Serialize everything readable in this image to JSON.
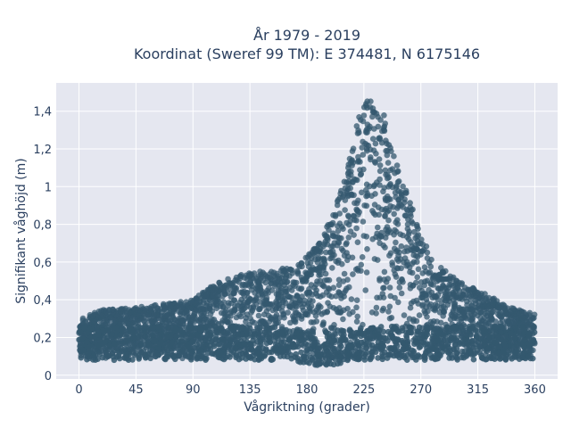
{
  "chart_data": {
    "type": "scatter",
    "title_lines": [
      "År 1979 - 2019",
      "Koordinat (Sweref 99 TM): E 374481, N 6175146"
    ],
    "xlabel": "Vågriktning (grader)",
    "ylabel": "Signifikant våghöjd (m)",
    "xlim": [
      -18,
      378
    ],
    "ylim": [
      -0.02,
      1.55
    ],
    "x_ticks": [
      0,
      45,
      90,
      135,
      180,
      225,
      270,
      315,
      360
    ],
    "x_tick_labels": [
      "0",
      "45",
      "90",
      "135",
      "180",
      "225",
      "270",
      "315",
      "360"
    ],
    "y_ticks": [
      0,
      0.2,
      0.4,
      0.6,
      0.8,
      1.0,
      1.2,
      1.4
    ],
    "y_tick_labels": [
      "0",
      "0,2",
      "0,4",
      "0,6",
      "0,8",
      "1",
      "1,2",
      "1,4"
    ],
    "grid": true,
    "marker_color": "#34586f",
    "plot_background": "#e5e7f0",
    "envelope": {
      "x": [
        0,
        20,
        45,
        70,
        90,
        110,
        135,
        150,
        170,
        180,
        190,
        200,
        210,
        220,
        225,
        230,
        235,
        240,
        250,
        260,
        270,
        280,
        300,
        315,
        330,
        345,
        360
      ],
      "y_max": [
        0.3,
        0.35,
        0.36,
        0.38,
        0.4,
        0.5,
        0.55,
        0.55,
        0.58,
        0.63,
        0.7,
        0.85,
        1.05,
        1.35,
        1.45,
        1.46,
        1.44,
        1.4,
        1.15,
        0.95,
        0.75,
        0.6,
        0.5,
        0.45,
        0.4,
        0.35,
        0.33
      ],
      "y_min": [
        0.08,
        0.08,
        0.08,
        0.08,
        0.08,
        0.08,
        0.08,
        0.08,
        0.07,
        0.06,
        0.05,
        0.05,
        0.07,
        0.08,
        0.08,
        0.08,
        0.08,
        0.08,
        0.08,
        0.08,
        0.08,
        0.08,
        0.08,
        0.08,
        0.08,
        0.08,
        0.08
      ]
    }
  }
}
